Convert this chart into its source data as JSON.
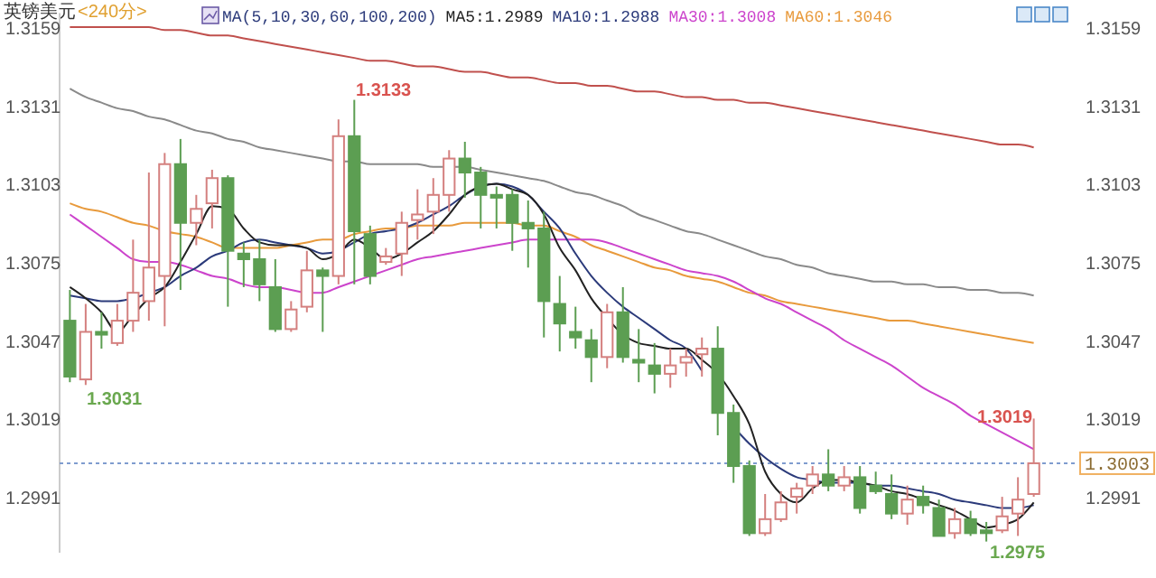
{
  "chart_data": {
    "type": "candlestick",
    "title": "英镑美元",
    "subtitle": "<240分>",
    "legend_title": "MA(5,10,30,60,100,200)",
    "legend": "top",
    "categories": [
      null,
      null,
      null,
      null,
      null,
      null,
      null,
      null,
      null,
      null,
      null,
      null,
      null,
      null,
      null,
      null,
      null,
      null,
      null,
      null,
      null,
      null,
      null,
      null,
      null,
      null,
      null,
      null,
      null,
      null,
      null,
      null,
      null,
      null,
      null,
      null,
      null,
      null,
      null,
      null,
      null,
      null,
      null,
      null,
      null,
      null,
      null,
      null,
      null,
      null,
      null,
      null,
      null,
      null,
      null,
      null,
      null,
      null,
      null,
      null,
      null,
      null
    ],
    "ylim": [
      1.2971,
      1.3164
    ],
    "yticks": [
      1.3159,
      1.3131,
      1.3103,
      1.3075,
      1.3047,
      1.3019,
      1.2991
    ],
    "y2lim": [
      1.2971,
      1.3164
    ],
    "y2ticks": [
      1.3159,
      1.3131,
      1.3103,
      1.3075,
      1.3047,
      1.3019,
      1.2991
    ],
    "ohlc": [
      [
        1.3054,
        1.3065,
        1.3032,
        1.3034
      ],
      [
        1.3033,
        1.306,
        1.3031,
        1.305
      ],
      [
        1.305,
        1.3057,
        1.3044,
        1.3049
      ],
      [
        1.3046,
        1.306,
        1.3045,
        1.3054
      ],
      [
        1.3054,
        1.3083,
        1.305,
        1.3064
      ],
      [
        1.3061,
        1.3107,
        1.3054,
        1.3073
      ],
      [
        1.307,
        1.3114,
        1.3052,
        1.311
      ],
      [
        1.311,
        1.3119,
        1.3065,
        1.3089
      ],
      [
        1.3089,
        1.3099,
        1.3081,
        1.3094
      ],
      [
        1.3096,
        1.3108,
        1.3087,
        1.3105
      ],
      [
        1.3105,
        1.3106,
        1.3059,
        1.3079
      ],
      [
        1.3078,
        1.3082,
        1.3066,
        1.3076
      ],
      [
        1.3076,
        1.3083,
        1.3061,
        1.3067
      ],
      [
        1.3066,
        1.3076,
        1.305,
        1.3051
      ],
      [
        1.3051,
        1.3061,
        1.305,
        1.3058
      ],
      [
        1.3059,
        1.3079,
        1.3057,
        1.3072
      ],
      [
        1.3072,
        1.3073,
        1.305,
        1.307
      ],
      [
        1.307,
        1.3126,
        1.3067,
        1.312
      ],
      [
        1.312,
        1.3133,
        1.3067,
        1.3086
      ],
      [
        1.3085,
        1.3088,
        1.3067,
        1.307
      ],
      [
        1.3075,
        1.308,
        1.3074,
        1.3077
      ],
      [
        1.3078,
        1.3093,
        1.307,
        1.3089
      ],
      [
        1.309,
        1.3101,
        1.3083,
        1.3092
      ],
      [
        1.3093,
        1.3105,
        1.3085,
        1.3099
      ],
      [
        1.3099,
        1.3115,
        1.3093,
        1.3112
      ],
      [
        1.3112,
        1.3118,
        1.3098,
        1.3107
      ],
      [
        1.3107,
        1.3109,
        1.3087,
        1.3099
      ],
      [
        1.3099,
        1.3102,
        1.3087,
        1.3098
      ],
      [
        1.3099,
        1.3101,
        1.3079,
        1.3089
      ],
      [
        1.3089,
        1.3097,
        1.3073,
        1.3087
      ],
      [
        1.3087,
        1.3093,
        1.3048,
        1.3061
      ],
      [
        1.306,
        1.307,
        1.3043,
        1.3053
      ],
      [
        1.305,
        1.3059,
        1.3044,
        1.3048
      ],
      [
        1.3047,
        1.3051,
        1.3032,
        1.3041
      ],
      [
        1.3041,
        1.306,
        1.3037,
        1.3057
      ],
      [
        1.3057,
        1.3066,
        1.3039,
        1.3041
      ],
      [
        1.304,
        1.3051,
        1.3032,
        1.3039
      ],
      [
        1.3038,
        1.3046,
        1.3028,
        1.3035
      ],
      [
        1.3035,
        1.3044,
        1.303,
        1.3038
      ],
      [
        1.3039,
        1.3044,
        1.3034,
        1.3041
      ],
      [
        1.3042,
        1.3048,
        1.3034,
        1.3044
      ],
      [
        1.3044,
        1.3052,
        1.3013,
        1.3021
      ],
      [
        1.3021,
        1.3024,
        1.2996,
        1.3002
      ],
      [
        1.3002,
        1.3004,
        1.2977,
        1.2978
      ],
      [
        1.2978,
        1.2992,
        1.2977,
        1.2983
      ],
      [
        1.2983,
        1.2993,
        1.2982,
        1.2989
      ],
      [
        1.2991,
        1.2996,
        1.2985,
        1.2994
      ],
      [
        1.2995,
        1.3002,
        1.2992,
        1.2999
      ],
      [
        1.2999,
        1.3008,
        1.2993,
        1.2995
      ],
      [
        1.2995,
        1.3002,
        1.2993,
        1.2998
      ],
      [
        1.2998,
        1.3002,
        1.2985,
        1.2987
      ],
      [
        1.2995,
        1.3,
        1.2992,
        1.2993
      ],
      [
        1.2992,
        1.2999,
        1.2983,
        1.2985
      ],
      [
        1.2985,
        1.2995,
        1.2981,
        1.299
      ],
      [
        1.2991,
        1.2995,
        1.2985,
        1.2988
      ],
      [
        1.2987,
        1.299,
        1.2977,
        1.2977
      ],
      [
        1.2978,
        1.2987,
        1.2976,
        1.2983
      ],
      [
        1.2983,
        1.2986,
        1.2977,
        1.2978
      ],
      [
        1.2979,
        1.2982,
        1.2975,
        1.2978
      ],
      [
        1.2979,
        1.2991,
        1.2978,
        1.2984
      ],
      [
        1.2985,
        1.2998,
        1.2977,
        1.299
      ],
      [
        1.2992,
        1.3019,
        1.2991,
        1.3003
      ]
    ],
    "colors": [
      "#5c9e52",
      "#d4807f",
      "#5c9e52",
      "#d4807f",
      "#d4807f",
      "#d4807f",
      "#d4807f",
      "#5c9e52",
      "#d4807f",
      "#d4807f",
      "#5c9e52",
      "#5c9e52",
      "#5c9e52",
      "#5c9e52",
      "#d4807f",
      "#d4807f",
      "#5c9e52",
      "#d4807f",
      "#5c9e52",
      "#5c9e52",
      "#d4807f",
      "#d4807f",
      "#d4807f",
      "#d4807f",
      "#d4807f",
      "#5c9e52",
      "#5c9e52",
      "#5c9e52",
      "#5c9e52",
      "#5c9e52",
      "#5c9e52",
      "#5c9e52",
      "#5c9e52",
      "#5c9e52",
      "#d4807f",
      "#5c9e52",
      "#5c9e52",
      "#5c9e52",
      "#d4807f",
      "#d4807f",
      "#d4807f",
      "#5c9e52",
      "#5c9e52",
      "#5c9e52",
      "#d4807f",
      "#d4807f",
      "#d4807f",
      "#d4807f",
      "#5c9e52",
      "#d4807f",
      "#5c9e52",
      "#5c9e52",
      "#5c9e52",
      "#d4807f",
      "#5c9e52",
      "#5c9e52",
      "#d4807f",
      "#5c9e52",
      "#5c9e52",
      "#d4807f",
      "#d4807f",
      "#d4807f"
    ],
    "series": [
      {
        "type": "line",
        "color": "#c0504d",
        "values": [
          1.3159,
          1.3159,
          1.3159,
          1.3159,
          1.3159,
          1.3159,
          1.3158,
          1.3158,
          1.3157,
          1.3156,
          1.3156,
          1.3155,
          1.3154,
          1.3153,
          1.3152,
          1.3151,
          1.315,
          1.3149,
          1.3148,
          1.3147,
          1.3147,
          1.3146,
          1.3145,
          1.3145,
          1.3144,
          1.3143,
          1.3143,
          1.3142,
          1.3141,
          1.3141,
          1.314,
          1.3139,
          1.3139,
          1.3138,
          1.3138,
          1.3137,
          1.3136,
          1.3136,
          1.3135,
          1.3134,
          1.3134,
          1.3133,
          1.3133,
          1.3132,
          1.3132,
          1.3131,
          1.313,
          1.3129,
          1.3128,
          1.3127,
          1.3126,
          1.3125,
          1.3124,
          1.3123,
          1.3122,
          1.3121,
          1.312,
          1.3119,
          1.3118,
          1.3117,
          1.3117,
          1.3116
        ]
      },
      {
        "type": "line",
        "color": "#8a8a8a",
        "values": [
          1.3137,
          1.3134,
          1.3132,
          1.313,
          1.3129,
          1.3127,
          1.3126,
          1.3124,
          1.3122,
          1.3121,
          1.3119,
          1.3118,
          1.3116,
          1.3115,
          1.3114,
          1.3113,
          1.3112,
          1.3111,
          1.3111,
          1.311,
          1.311,
          1.311,
          1.311,
          1.3109,
          1.3109,
          1.3109,
          1.3108,
          1.3107,
          1.3106,
          1.3105,
          1.3104,
          1.3102,
          1.31,
          1.3099,
          1.3097,
          1.3095,
          1.3092,
          1.309,
          1.3088,
          1.3086,
          1.3085,
          1.3083,
          1.3081,
          1.3079,
          1.3077,
          1.3076,
          1.3074,
          1.3073,
          1.3071,
          1.307,
          1.3069,
          1.3068,
          1.3068,
          1.3067,
          1.3067,
          1.3066,
          1.3066,
          1.3065,
          1.3065,
          1.3064,
          1.3064,
          1.3063
        ]
      },
      {
        "type": "line",
        "name": "MA60:1.3046",
        "color": "#e89a3c",
        "values": [
          1.3096,
          1.3094,
          1.3093,
          1.3091,
          1.3089,
          1.3088,
          1.3086,
          1.3085,
          1.3084,
          1.3082,
          1.308,
          1.308,
          1.308,
          1.308,
          1.3081,
          1.3082,
          1.3083,
          1.3083,
          1.3085,
          1.3086,
          1.3087,
          1.3087,
          1.3088,
          1.3088,
          1.3088,
          1.3089,
          1.3089,
          1.3089,
          1.3089,
          1.3088,
          1.3088,
          1.3086,
          1.3084,
          1.3081,
          1.3079,
          1.3077,
          1.3075,
          1.3073,
          1.3072,
          1.307,
          1.3069,
          1.3068,
          1.3066,
          1.3064,
          1.3063,
          1.3061,
          1.306,
          1.3059,
          1.3058,
          1.3057,
          1.3056,
          1.3055,
          1.3054,
          1.3054,
          1.3053,
          1.3052,
          1.3051,
          1.305,
          1.3049,
          1.3048,
          1.3047,
          1.3046
        ]
      },
      {
        "type": "line",
        "name": "MA30:1.3008",
        "color": "#cc44cc",
        "values": [
          1.3092,
          1.3088,
          1.3084,
          1.308,
          1.3076,
          1.3075,
          1.3075,
          1.3074,
          1.3072,
          1.307,
          1.3069,
          1.3067,
          1.3066,
          1.3066,
          1.3065,
          1.3064,
          1.3064,
          1.3066,
          1.3068,
          1.307,
          1.3072,
          1.3074,
          1.3076,
          1.3077,
          1.3078,
          1.3079,
          1.308,
          1.3081,
          1.3082,
          1.3083,
          1.3083,
          1.3083,
          1.3083,
          1.3083,
          1.3082,
          1.308,
          1.3078,
          1.3076,
          1.3074,
          1.3072,
          1.3071,
          1.307,
          1.3068,
          1.3065,
          1.3062,
          1.306,
          1.3057,
          1.3054,
          1.3051,
          1.3047,
          1.3044,
          1.3041,
          1.3038,
          1.3034,
          1.303,
          1.3027,
          1.3024,
          1.302,
          1.3017,
          1.3014,
          1.3011,
          1.3008
        ]
      },
      {
        "type": "line",
        "name": "MA10:1.2988",
        "color": "#2b3a7a",
        "values": [
          1.3063,
          1.3062,
          1.3061,
          1.3061,
          1.3062,
          1.3064,
          1.3066,
          1.307,
          1.3073,
          1.3077,
          1.3079,
          1.3082,
          1.3083,
          1.3082,
          1.3081,
          1.308,
          1.3078,
          1.3079,
          1.3082,
          1.3085,
          1.3086,
          1.3087,
          1.3089,
          1.3092,
          1.3095,
          1.3099,
          1.3102,
          1.3103,
          1.3102,
          1.3099,
          1.3093,
          1.3087,
          1.3078,
          1.307,
          1.3064,
          1.3059,
          1.3055,
          1.3051,
          1.3047,
          1.3044,
          1.3036,
          null,
          1.3016,
          1.301,
          1.3005,
          1.3001,
          1.2998,
          1.2997,
          1.2996,
          1.2996,
          1.2996,
          1.2995,
          1.2995,
          1.2994,
          1.2993,
          1.2992,
          1.299,
          1.2989,
          1.2988,
          1.2987,
          1.2987,
          1.2988
        ]
      },
      {
        "type": "line",
        "name": "MA5:1.2989",
        "color": "#222222",
        "values": [
          1.3066,
          1.3062,
          1.3057,
          1.305,
          1.3056,
          1.3062,
          1.3066,
          1.3075,
          1.3085,
          1.3095,
          1.3094,
          1.3087,
          1.3082,
          1.3081,
          1.3081,
          1.308,
          1.3076,
          1.3078,
          1.3083,
          1.308,
          1.3076,
          1.3078,
          1.3082,
          1.3086,
          1.3092,
          1.3099,
          1.3102,
          1.3103,
          1.3101,
          1.3099,
          1.3092,
          1.308,
          1.3072,
          1.3062,
          1.3055,
          1.3049,
          1.3046,
          1.3045,
          1.3044,
          1.3044,
          1.304,
          1.3035,
          1.3027,
          1.3017,
          1.3,
          1.2992,
          1.2989,
          1.2994,
          1.2997,
          1.2997,
          1.2996,
          1.2995,
          1.2993,
          1.2992,
          1.299,
          1.2988,
          1.2986,
          1.2983,
          1.298,
          1.2981,
          1.2983,
          1.2989
        ]
      }
    ],
    "ref_lines": [
      {
        "axis": "y2",
        "value": 1.3003,
        "label": "1.3003",
        "color": "#7f9ccf",
        "line_style": "dotted"
      }
    ],
    "annotations": [
      "1.3133",
      "1.3031",
      "1.3019",
      "1.2975"
    ]
  }
}
